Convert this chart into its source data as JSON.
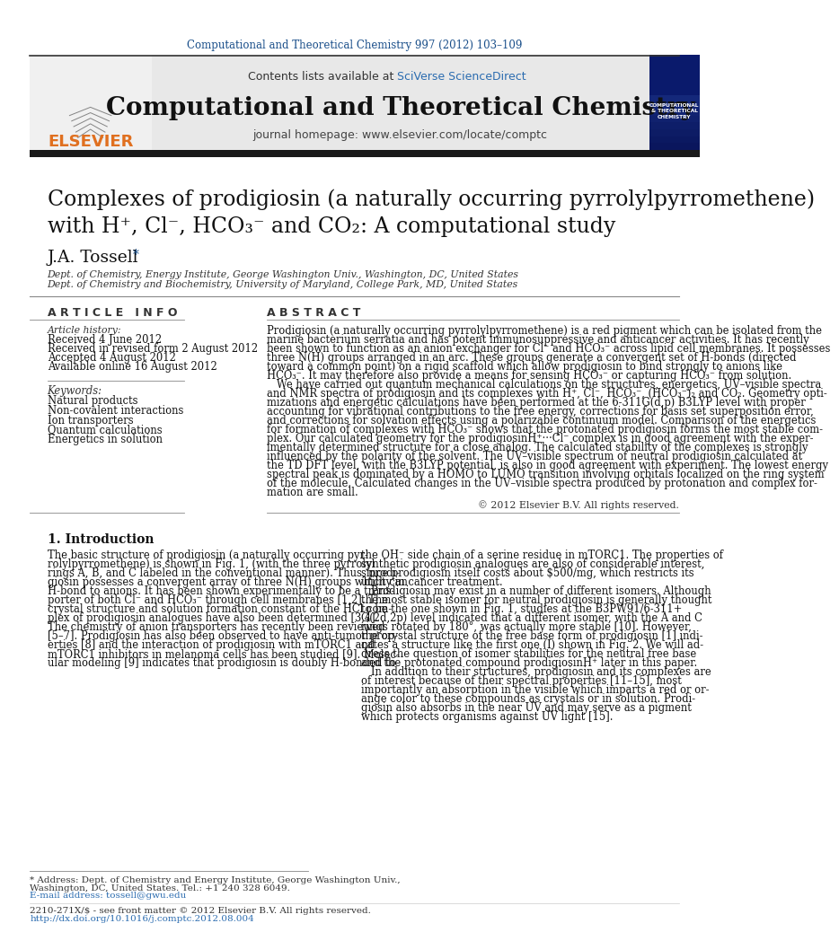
{
  "journal_ref": "Computational and Theoretical Chemistry 997 (2012) 103–109",
  "journal_name": "Computational and Theoretical Chemistry",
  "journal_homepage": "journal homepage: www.elsevier.com/locate/comptc",
  "contents_text": "Contents lists available at ",
  "sciverse_text": "SciVerse ScienceDirect",
  "title_line1": "Complexes of prodigiosin (a naturally occurring pyrrolylpyrromethene)",
  "title_line2": "with H⁺, Cl⁻, HCO₃⁻ and CO₂: A computational study",
  "author": "J.A. Tossell",
  "affil1": "Dept. of Chemistry, Energy Institute, George Washington Univ., Washington, DC, United States",
  "affil2": "Dept. of Chemistry and Biochemistry, University of Maryland, College Park, MD, United States",
  "article_info_header": "A R T I C L E   I N F O",
  "abstract_header": "A B S T R A C T",
  "article_history_label": "Article history:",
  "received": "Received 4 June 2012",
  "revised": "Received in revised form 2 August 2012",
  "accepted": "Accepted 4 August 2012",
  "available": "Available online 16 August 2012",
  "keywords_label": "Keywords:",
  "keywords": [
    "Natural products",
    "Non-covalent interactions",
    "Ion transporters",
    "Quantum calculations",
    "Energetics in solution"
  ],
  "copyright": "© 2012 Elsevier B.V. All rights reserved.",
  "intro_header": "1. Introduction",
  "footnote_line1": "* Address: Dept. of Chemistry and Energy Institute, George Washington Univ.,",
  "footnote_line2": "Washington, DC, United States. Tel.: +1 240 328 6049.",
  "footnote_email": "E-mail address: tossell@gwu.edu",
  "bottom_issn": "2210-271X/$ - see front matter © 2012 Elsevier B.V. All rights reserved.",
  "bottom_doi": "http://dx.doi.org/10.1016/j.comptc.2012.08.004",
  "bg_color": "#ffffff",
  "header_bg": "#e8e8e8",
  "blue_color": "#1a4f8a",
  "link_color": "#2b6cb0",
  "orange_color": "#e07020",
  "dark_bar_color": "#1a1a1a",
  "section_line_color": "#888888",
  "text_color": "#000000",
  "abstract_lines": [
    "Prodigiosin (a naturally occurring pyrrolylpyrromethene) is a red pigment which can be isolated from the",
    "marine bacterium serratia and has potent immunosuppressive and anticancer activities. It has recently",
    "been shown to function as an anion exchanger for Cl⁻ and HCO₃⁻ across lipid cell membranes. It possesses",
    "three N(H) groups arranged in an arc. These groups generate a convergent set of H-bonds (directed",
    "toward a common point) on a rigid scaffold which allow prodigiosin to bind strongly to anions like",
    "HCO₃⁻. It may therefore also provide a means for sensing HCO₃⁻ or capturing HCO₃⁻ from solution.",
    "   We have carried out quantum mechanical calculations on the structures, energetics, UV–visible spectra",
    "and NMR spectra of prodigiosin and its complexes with H⁺, Cl⁻, HCO₃⁻, (HCO₃⁻)₂ and CO₂. Geometry opti-",
    "mizations and energetic calculations have been performed at the 6-311G(d,p) B3LYP level with proper",
    "accounting for vibrational contributions to the free energy, corrections for basis set superposition error,",
    "and corrections for solvation effects using a polarizable continuum model. Comparison of the energetics",
    "for formation of complexes with HCO₃⁻ shows that the protonated prodigiosin forms the most stable com-",
    "plex. Our calculated geometry for the prodigiosinH⁺···Cl⁻ complex is in good agreement with the exper-",
    "imentally determined structure for a close analog. The calculated stability of the complexes is strongly",
    "influenced by the polarity of the solvent. The UV–visible spectrum of neutral prodigiosin calculated at",
    "the TD DFT level, with the B3LYP potential, is also in good agreement with experiment. The lowest energy",
    "spectral peak is dominated by a HOMO to LUMO transition involving orbitals localized on the ring system",
    "of the molecule. Calculated changes in the UV–visible spectra produced by protonation and complex for-",
    "mation are small."
  ],
  "left_intro_lines": [
    "The basic structure of prodigiosin (a naturally occurring pyr-",
    "rolylpyrromethene) is shown in Fig. 1, (with the three pyrrolyl",
    "rings A, B, and C labeled in the conventional manner). Thus, prodi-",
    "giosin possesses a convergent array of three N(H) groups which can",
    "H-bond to anions. It has been shown experimentally to be a trans-",
    "porter of both Cl⁻ and HCO₃⁻ through cell membranes [1,2]. The",
    "crystal structure and solution formation constant of the HCl com-",
    "plex of prodigiosin analogues have also been determined [3,4].",
    "The chemistry of anion transporters has recently been reviewed",
    "[5–7]. Prodigiosin has also been observed to have anti-tumor prop-",
    "erties [8] and the interaction of prodigiosin with mTORC1 and",
    "mTORC1 inhibitors in melanoma cells has been studied [9]. Molec-",
    "ular modeling [9] indicates that prodigiosin is doubly H-bonded to"
  ],
  "right_intro_lines": [
    "the OH⁻ side chain of a serine residue in mTORC1. The properties of",
    "synthetic prodigiosin analogues are also of considerable interest,",
    "since prodigiosin itself costs about $500/mg, which restricts its",
    "utility in cancer treatment.",
    "   Prodigiosin may exist in a number of different isomers. Although",
    "the most stable isomer for neutral prodigiosin is generally thought",
    "to be the one shown in Fig. 1, studies at the B3PW91/6-311+",
    "G(2d,2p) level indicated that a different isomer, with the A and C",
    "rings rotated by 180°, was actually more stable [10]. However,",
    "the crystal structure of the free base form of prodigiosin [1] indi-",
    "cates a structure like the first one (I) shown in Fig. 2. We will ad-",
    "dress the question of isomer stabilities for the neutral free base",
    "and the protonated compound prodigiosinH⁺ later in this paper.",
    "   In addition to their structures, prodigiosin and its complexes are",
    "of interest because of their spectral properties [11–15], most",
    "importantly an absorption in the visible which imparts a red or or-",
    "ange color to these compounds as crystals or in solution. Prodi-",
    "giosin also absorbs in the near UV and may serve as a pigment",
    "which protects organisms against UV light [15]."
  ]
}
